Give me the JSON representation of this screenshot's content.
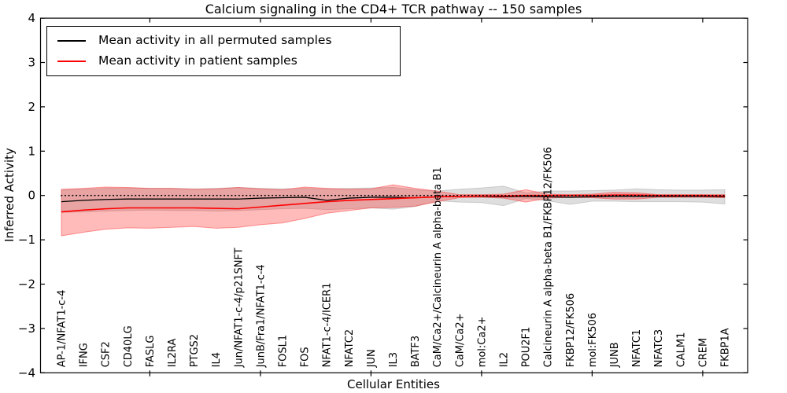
{
  "title": "Calcium signaling in the CD4+ TCR pathway -- 150 samples",
  "axes": {
    "xlabel": "Cellular Entities",
    "ylabel": "Inferred Activity"
  },
  "legend": {
    "position": "upper left",
    "entries": [
      {
        "label": "Mean activity in all permuted samples",
        "color": "#000000"
      },
      {
        "label": "Mean activity in patient samples",
        "color": "#ff0000"
      }
    ]
  },
  "colors": {
    "background": "#ffffff",
    "axis": "#000000",
    "permuted_line": "#000000",
    "patient_line": "#ff0000",
    "permuted_band_fill": "#a0a0a0",
    "patient_band_fill": "#ff2828",
    "zero_line": "#000000"
  },
  "chart_data": {
    "type": "line",
    "title": "Calcium signaling in the CD4+ TCR pathway -- 150 samples",
    "xlabel": "Cellular Entities",
    "ylabel": "Inferred Activity",
    "ylim": [
      -4,
      4
    ],
    "yticks": [
      -4,
      -3,
      -2,
      -1,
      0,
      1,
      2,
      3,
      4
    ],
    "grid": false,
    "legend_position": "upper left",
    "x_major_tick_indices": [
      4,
      9,
      14,
      19,
      24,
      29
    ],
    "zero_line": {
      "y": 0,
      "style": "dotted",
      "color": "#000000"
    },
    "categories": [
      "AP-1/NFAT1-c-4",
      "IFNG",
      "CSF2",
      "CD40LG",
      "FASLG",
      "IL2RA",
      "PTGS2",
      "IL4",
      "Jun/NFAT1-c-4/p21SNFT",
      "JunB/Fra1/NFAT1-c-4",
      "FOSL1",
      "FOS",
      "NFAT1-c-4/ICER1",
      "NFATC2",
      "JUN",
      "IL3",
      "BATF3",
      "CaM/Ca2+/Calcineurin A alpha-beta B1",
      "CaM/Ca2+",
      "mol:Ca2+",
      "IL2",
      "POU2F1",
      "Calcineurin A alpha-beta B1/FKBP12/FK506",
      "FKBP12/FK506",
      "mol:FK506",
      "JUNB",
      "NFATC1",
      "NFATC3",
      "CALM1",
      "CREM",
      "FKBP1A"
    ],
    "series": [
      {
        "name": "Mean activity in all permuted samples",
        "color": "#000000",
        "values": [
          -0.14,
          -0.11,
          -0.09,
          -0.08,
          -0.08,
          -0.08,
          -0.08,
          -0.08,
          -0.08,
          -0.06,
          -0.05,
          -0.04,
          -0.11,
          -0.06,
          -0.04,
          -0.04,
          -0.05,
          -0.03,
          -0.02,
          -0.02,
          -0.03,
          -0.02,
          -0.03,
          -0.04,
          -0.03,
          -0.02,
          -0.02,
          -0.02,
          -0.02,
          -0.02,
          -0.03
        ]
      },
      {
        "name": "Mean activity in patient samples",
        "color": "#ff0000",
        "values": [
          -0.37,
          -0.33,
          -0.3,
          -0.28,
          -0.28,
          -0.28,
          -0.28,
          -0.29,
          -0.3,
          -0.26,
          -0.22,
          -0.18,
          -0.14,
          -0.11,
          -0.09,
          -0.07,
          -0.05,
          -0.03,
          -0.02,
          -0.01,
          -0.01,
          0.0,
          0.0,
          0.0,
          0.0,
          0.01,
          0.01,
          0.0,
          0.0,
          0.0,
          -0.01
        ]
      }
    ],
    "bands": [
      {
        "name": "permuted-samples-band",
        "color": "#a0a0a0",
        "fill_opacity": 0.35,
        "edge_opacity": 0.45,
        "upper": [
          0.12,
          0.14,
          0.16,
          0.17,
          0.16,
          0.16,
          0.15,
          0.16,
          0.18,
          0.16,
          0.15,
          0.16,
          0.15,
          0.16,
          0.17,
          0.18,
          0.13,
          0.1,
          0.14,
          0.17,
          0.21,
          0.06,
          0.1,
          0.1,
          0.11,
          0.12,
          0.15,
          0.13,
          0.12,
          0.12,
          0.13
        ],
        "lower": [
          -0.38,
          -0.37,
          -0.35,
          -0.34,
          -0.33,
          -0.34,
          -0.34,
          -0.35,
          -0.34,
          -0.32,
          -0.3,
          -0.29,
          -0.32,
          -0.3,
          -0.28,
          -0.31,
          -0.25,
          -0.12,
          -0.15,
          -0.16,
          -0.23,
          -0.07,
          -0.12,
          -0.2,
          -0.13,
          -0.13,
          -0.14,
          -0.14,
          -0.14,
          -0.15,
          -0.19
        ]
      },
      {
        "name": "patient-samples-band",
        "color": "#ff2828",
        "fill_opacity": 0.32,
        "edge_opacity": 0.45,
        "upper": [
          0.14,
          0.16,
          0.19,
          0.18,
          0.16,
          0.16,
          0.14,
          0.15,
          0.18,
          0.15,
          0.13,
          0.19,
          0.16,
          0.14,
          0.15,
          0.24,
          0.16,
          0.1,
          0.02,
          0.02,
          0.03,
          0.13,
          0.03,
          0.02,
          0.03,
          0.07,
          0.06,
          0.02,
          0.02,
          0.02,
          0.02
        ],
        "lower": [
          -0.91,
          -0.83,
          -0.76,
          -0.73,
          -0.74,
          -0.72,
          -0.7,
          -0.74,
          -0.72,
          -0.66,
          -0.62,
          -0.52,
          -0.4,
          -0.34,
          -0.28,
          -0.27,
          -0.24,
          -0.14,
          -0.05,
          -0.04,
          -0.06,
          -0.15,
          -0.06,
          -0.04,
          -0.05,
          -0.08,
          -0.08,
          -0.04,
          -0.04,
          -0.04,
          -0.05
        ]
      }
    ]
  }
}
